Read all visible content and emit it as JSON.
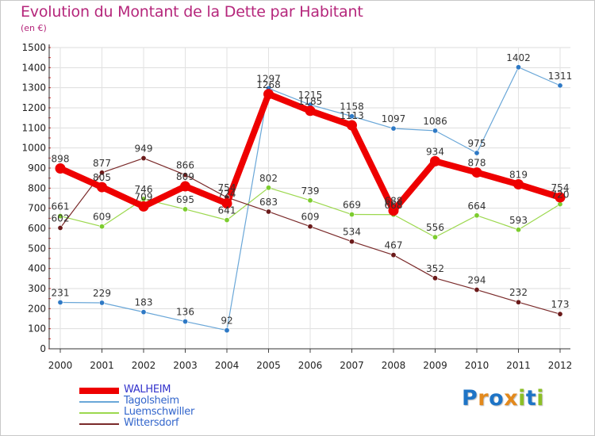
{
  "header": {
    "title": "Evolution du Montant de la Dette par Habitant",
    "unit": "(en €)"
  },
  "logo": {
    "text": "Proxiti",
    "letters": [
      {
        "ch": "P",
        "color": "#1e74c6"
      },
      {
        "ch": "r",
        "color": "#e3891c"
      },
      {
        "ch": "o",
        "color": "#1e74c6"
      },
      {
        "ch": "x",
        "color": "#e3891c"
      },
      {
        "ch": "i",
        "color": "#8cbf26"
      },
      {
        "ch": "t",
        "color": "#1e74c6"
      },
      {
        "ch": "i",
        "color": "#8cbf26"
      }
    ]
  },
  "chart_data": {
    "type": "line",
    "x": [
      "2000",
      "2001",
      "2002",
      "2003",
      "2004",
      "2005",
      "2006",
      "2007",
      "2008",
      "2009",
      "2010",
      "2011",
      "2012"
    ],
    "ylim": [
      0,
      1500
    ],
    "yticks": [
      "0",
      "100",
      "200",
      "300",
      "400",
      "500",
      "600",
      "700",
      "800",
      "900",
      "1000",
      "1100",
      "1200",
      "1300",
      "1400",
      "1500"
    ],
    "grid": true,
    "legend_position": "bottom-left",
    "series": [
      {
        "name": "WALHEIM",
        "color": "#ee0000",
        "marker_color": "#ee0000",
        "legend_color": "#3333cc",
        "emphasis": true,
        "values": [
          898,
          805,
          709,
          809,
          724,
          1268,
          1185,
          1113,
          688,
          934,
          878,
          819,
          754
        ],
        "labels": [
          "898",
          "805",
          "709",
          "809",
          "724",
          "1268",
          "1185",
          "1113",
          "688",
          "934",
          "878",
          "819",
          "754"
        ]
      },
      {
        "name": "Tagolsheim",
        "color": "#6aa7d8",
        "marker_color": "#2e79c5",
        "legend_color": "#3366cc",
        "emphasis": false,
        "values": [
          231,
          229,
          183,
          136,
          92,
          1297,
          1215,
          1158,
          1097,
          1086,
          975,
          1402,
          1311
        ],
        "labels": [
          "231",
          "229",
          "183",
          "136",
          "92",
          "1297",
          "1215",
          "1158",
          "1097",
          "1086",
          "975",
          "1402",
          "1311"
        ]
      },
      {
        "name": "Luemschwiller",
        "color": "#9cd84e",
        "marker_color": "#7ccc2e",
        "legend_color": "#3366cc",
        "emphasis": false,
        "values": [
          661,
          609,
          746,
          695,
          641,
          802,
          739,
          669,
          668,
          556,
          664,
          593,
          720
        ],
        "labels": [
          "661",
          "609",
          "746",
          "695",
          "641",
          "802",
          "739",
          "669",
          "668",
          "556",
          "664",
          "593",
          "720"
        ]
      },
      {
        "name": "Wittersdorf",
        "color": "#7a2a2a",
        "marker_color": "#6b1a1a",
        "legend_color": "#3366cc",
        "emphasis": false,
        "values": [
          602,
          877,
          949,
          866,
          754,
          683,
          609,
          534,
          467,
          352,
          294,
          232,
          173
        ],
        "labels": [
          "602",
          "877",
          "949",
          "866",
          "754",
          "683",
          "609",
          "534",
          "467",
          "352",
          "294",
          "232",
          "173"
        ]
      }
    ]
  }
}
